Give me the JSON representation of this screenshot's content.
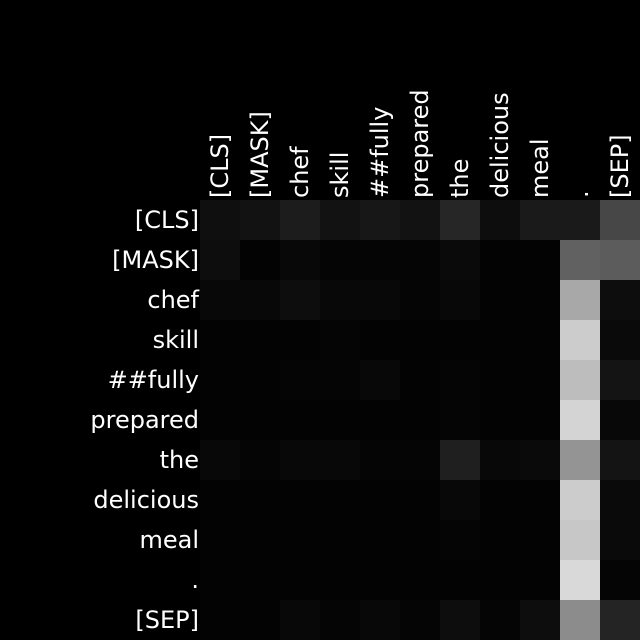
{
  "chart_data": {
    "type": "heatmap",
    "title": "",
    "xlabel": "",
    "ylabel": "",
    "x_tokens": [
      "[CLS]",
      "[MASK]",
      "chef",
      "skill",
      "##fully",
      "prepared",
      "the",
      "delicious",
      "meal",
      ".",
      "[SEP]"
    ],
    "y_tokens": [
      "[CLS]",
      "[MASK]",
      "chef",
      "skill",
      "##fully",
      "prepared",
      "the",
      "delicious",
      "meal",
      ".",
      "[SEP]"
    ],
    "value_range": [
      0,
      1
    ],
    "colormap": "grayscale (black = low, white = high)",
    "values": [
      [
        0.06,
        0.07,
        0.11,
        0.07,
        0.09,
        0.07,
        0.15,
        0.05,
        0.1,
        0.1,
        0.28
      ],
      [
        0.05,
        0.01,
        0.03,
        0.02,
        0.02,
        0.02,
        0.04,
        0.01,
        0.01,
        0.38,
        0.36
      ],
      [
        0.03,
        0.03,
        0.05,
        0.03,
        0.03,
        0.02,
        0.03,
        0.01,
        0.01,
        0.66,
        0.05
      ],
      [
        0.01,
        0.01,
        0.01,
        0.02,
        0.01,
        0.01,
        0.01,
        0.01,
        0.01,
        0.8,
        0.04
      ],
      [
        0.01,
        0.01,
        0.02,
        0.02,
        0.03,
        0.01,
        0.02,
        0.01,
        0.01,
        0.74,
        0.08
      ],
      [
        0.01,
        0.01,
        0.01,
        0.01,
        0.01,
        0.01,
        0.02,
        0.01,
        0.01,
        0.83,
        0.03
      ],
      [
        0.03,
        0.02,
        0.03,
        0.03,
        0.02,
        0.02,
        0.12,
        0.03,
        0.04,
        0.58,
        0.08
      ],
      [
        0.01,
        0.01,
        0.01,
        0.01,
        0.01,
        0.01,
        0.03,
        0.01,
        0.01,
        0.8,
        0.04
      ],
      [
        0.01,
        0.01,
        0.01,
        0.01,
        0.01,
        0.01,
        0.02,
        0.01,
        0.01,
        0.78,
        0.04
      ],
      [
        0.01,
        0.01,
        0.01,
        0.01,
        0.01,
        0.01,
        0.01,
        0.01,
        0.01,
        0.85,
        0.02
      ],
      [
        0.01,
        0.01,
        0.03,
        0.02,
        0.03,
        0.02,
        0.05,
        0.02,
        0.05,
        0.55,
        0.14
      ]
    ]
  }
}
